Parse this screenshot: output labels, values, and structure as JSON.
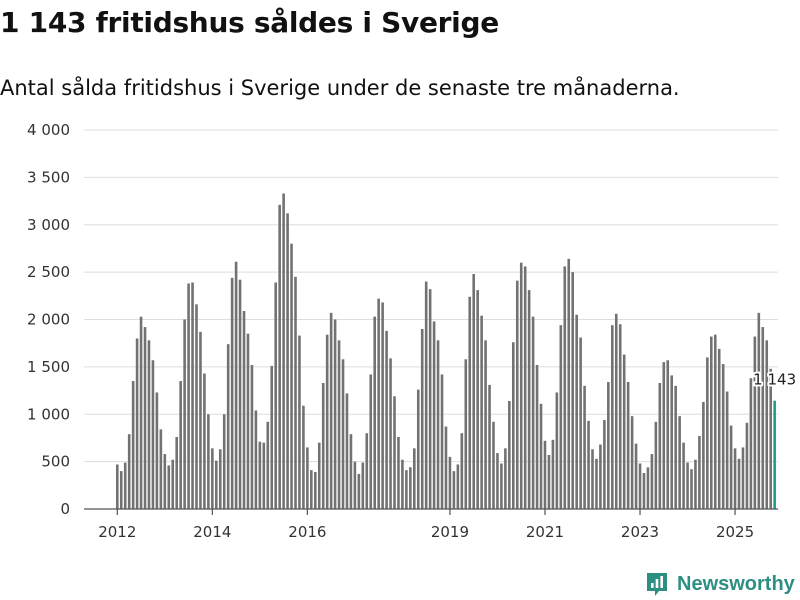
{
  "header": {
    "title": "1 143 fritidshus såldes i Sverige",
    "subtitle": "Antal sålda fritidshus i Sverige under de senaste tre månaderna."
  },
  "brand": {
    "name": "Newsworthy",
    "icon": "newsworthy-logo-icon",
    "color": "#2d8f82"
  },
  "colors": {
    "bar": "#727272",
    "highlight": "#1f9d8a"
  },
  "chart_data": {
    "type": "bar",
    "title": "1 143 fritidshus såldes i Sverige",
    "subtitle": "Antal sålda fritidshus i Sverige under de senaste tre månaderna.",
    "xlabel": "",
    "ylabel": "",
    "ylim": [
      0,
      4000
    ],
    "grid": true,
    "yticks": [
      0,
      500,
      1000,
      1500,
      2000,
      2500,
      3000,
      3500,
      4000
    ],
    "ytick_labels": [
      "0",
      "500",
      "1 000",
      "1 500",
      "2 000",
      "2 500",
      "3 000",
      "3 500",
      "4 000"
    ],
    "xticks": [
      {
        "label": "2012",
        "index": 0
      },
      {
        "label": "2014",
        "index": 24
      },
      {
        "label": "2016",
        "index": 48
      },
      {
        "label": "2019",
        "index": 84
      },
      {
        "label": "2021",
        "index": 108
      },
      {
        "label": "2023",
        "index": 132
      },
      {
        "label": "2025",
        "index": 156
      }
    ],
    "series": [
      {
        "name": "Antal sålda fritidshus",
        "start": "2012-01",
        "frequency": "monthly",
        "values": [
          470,
          400,
          490,
          790,
          1350,
          1800,
          2030,
          1920,
          1780,
          1570,
          1230,
          840,
          580,
          460,
          520,
          760,
          1350,
          2000,
          2380,
          2390,
          2160,
          1870,
          1430,
          1000,
          640,
          510,
          630,
          1000,
          1740,
          2440,
          2610,
          2420,
          2090,
          1850,
          1520,
          1040,
          710,
          700,
          920,
          1510,
          2390,
          3210,
          3330,
          3120,
          2800,
          2450,
          1830,
          1090,
          650,
          410,
          390,
          700,
          1330,
          1840,
          2070,
          2000,
          1780,
          1580,
          1220,
          790,
          500,
          370,
          490,
          800,
          1420,
          2030,
          2220,
          2180,
          1880,
          1590,
          1190,
          760,
          520,
          410,
          440,
          640,
          1260,
          1900,
          2400,
          2320,
          1980,
          1780,
          1420,
          870,
          550,
          400,
          470,
          800,
          1580,
          2240,
          2480,
          2310,
          2040,
          1780,
          1310,
          920,
          590,
          480,
          640,
          1140,
          1760,
          2410,
          2600,
          2560,
          2310,
          2030,
          1520,
          1110,
          720,
          570,
          730,
          1230,
          1940,
          2560,
          2640,
          2500,
          2050,
          1810,
          1300,
          930,
          630,
          530,
          680,
          940,
          1340,
          1940,
          2060,
          1950,
          1630,
          1340,
          980,
          690,
          480,
          380,
          440,
          580,
          920,
          1330,
          1550,
          1570,
          1410,
          1300,
          980,
          700,
          490,
          420,
          520,
          770,
          1130,
          1600,
          1820,
          1840,
          1690,
          1530,
          1240,
          880,
          640,
          530,
          650,
          910,
          1380,
          1820,
          2070,
          1920,
          1780,
          1480,
          1143
        ],
        "highlight_last": true
      }
    ],
    "annotations": [
      {
        "text": "1 143",
        "target": "last"
      }
    ]
  }
}
